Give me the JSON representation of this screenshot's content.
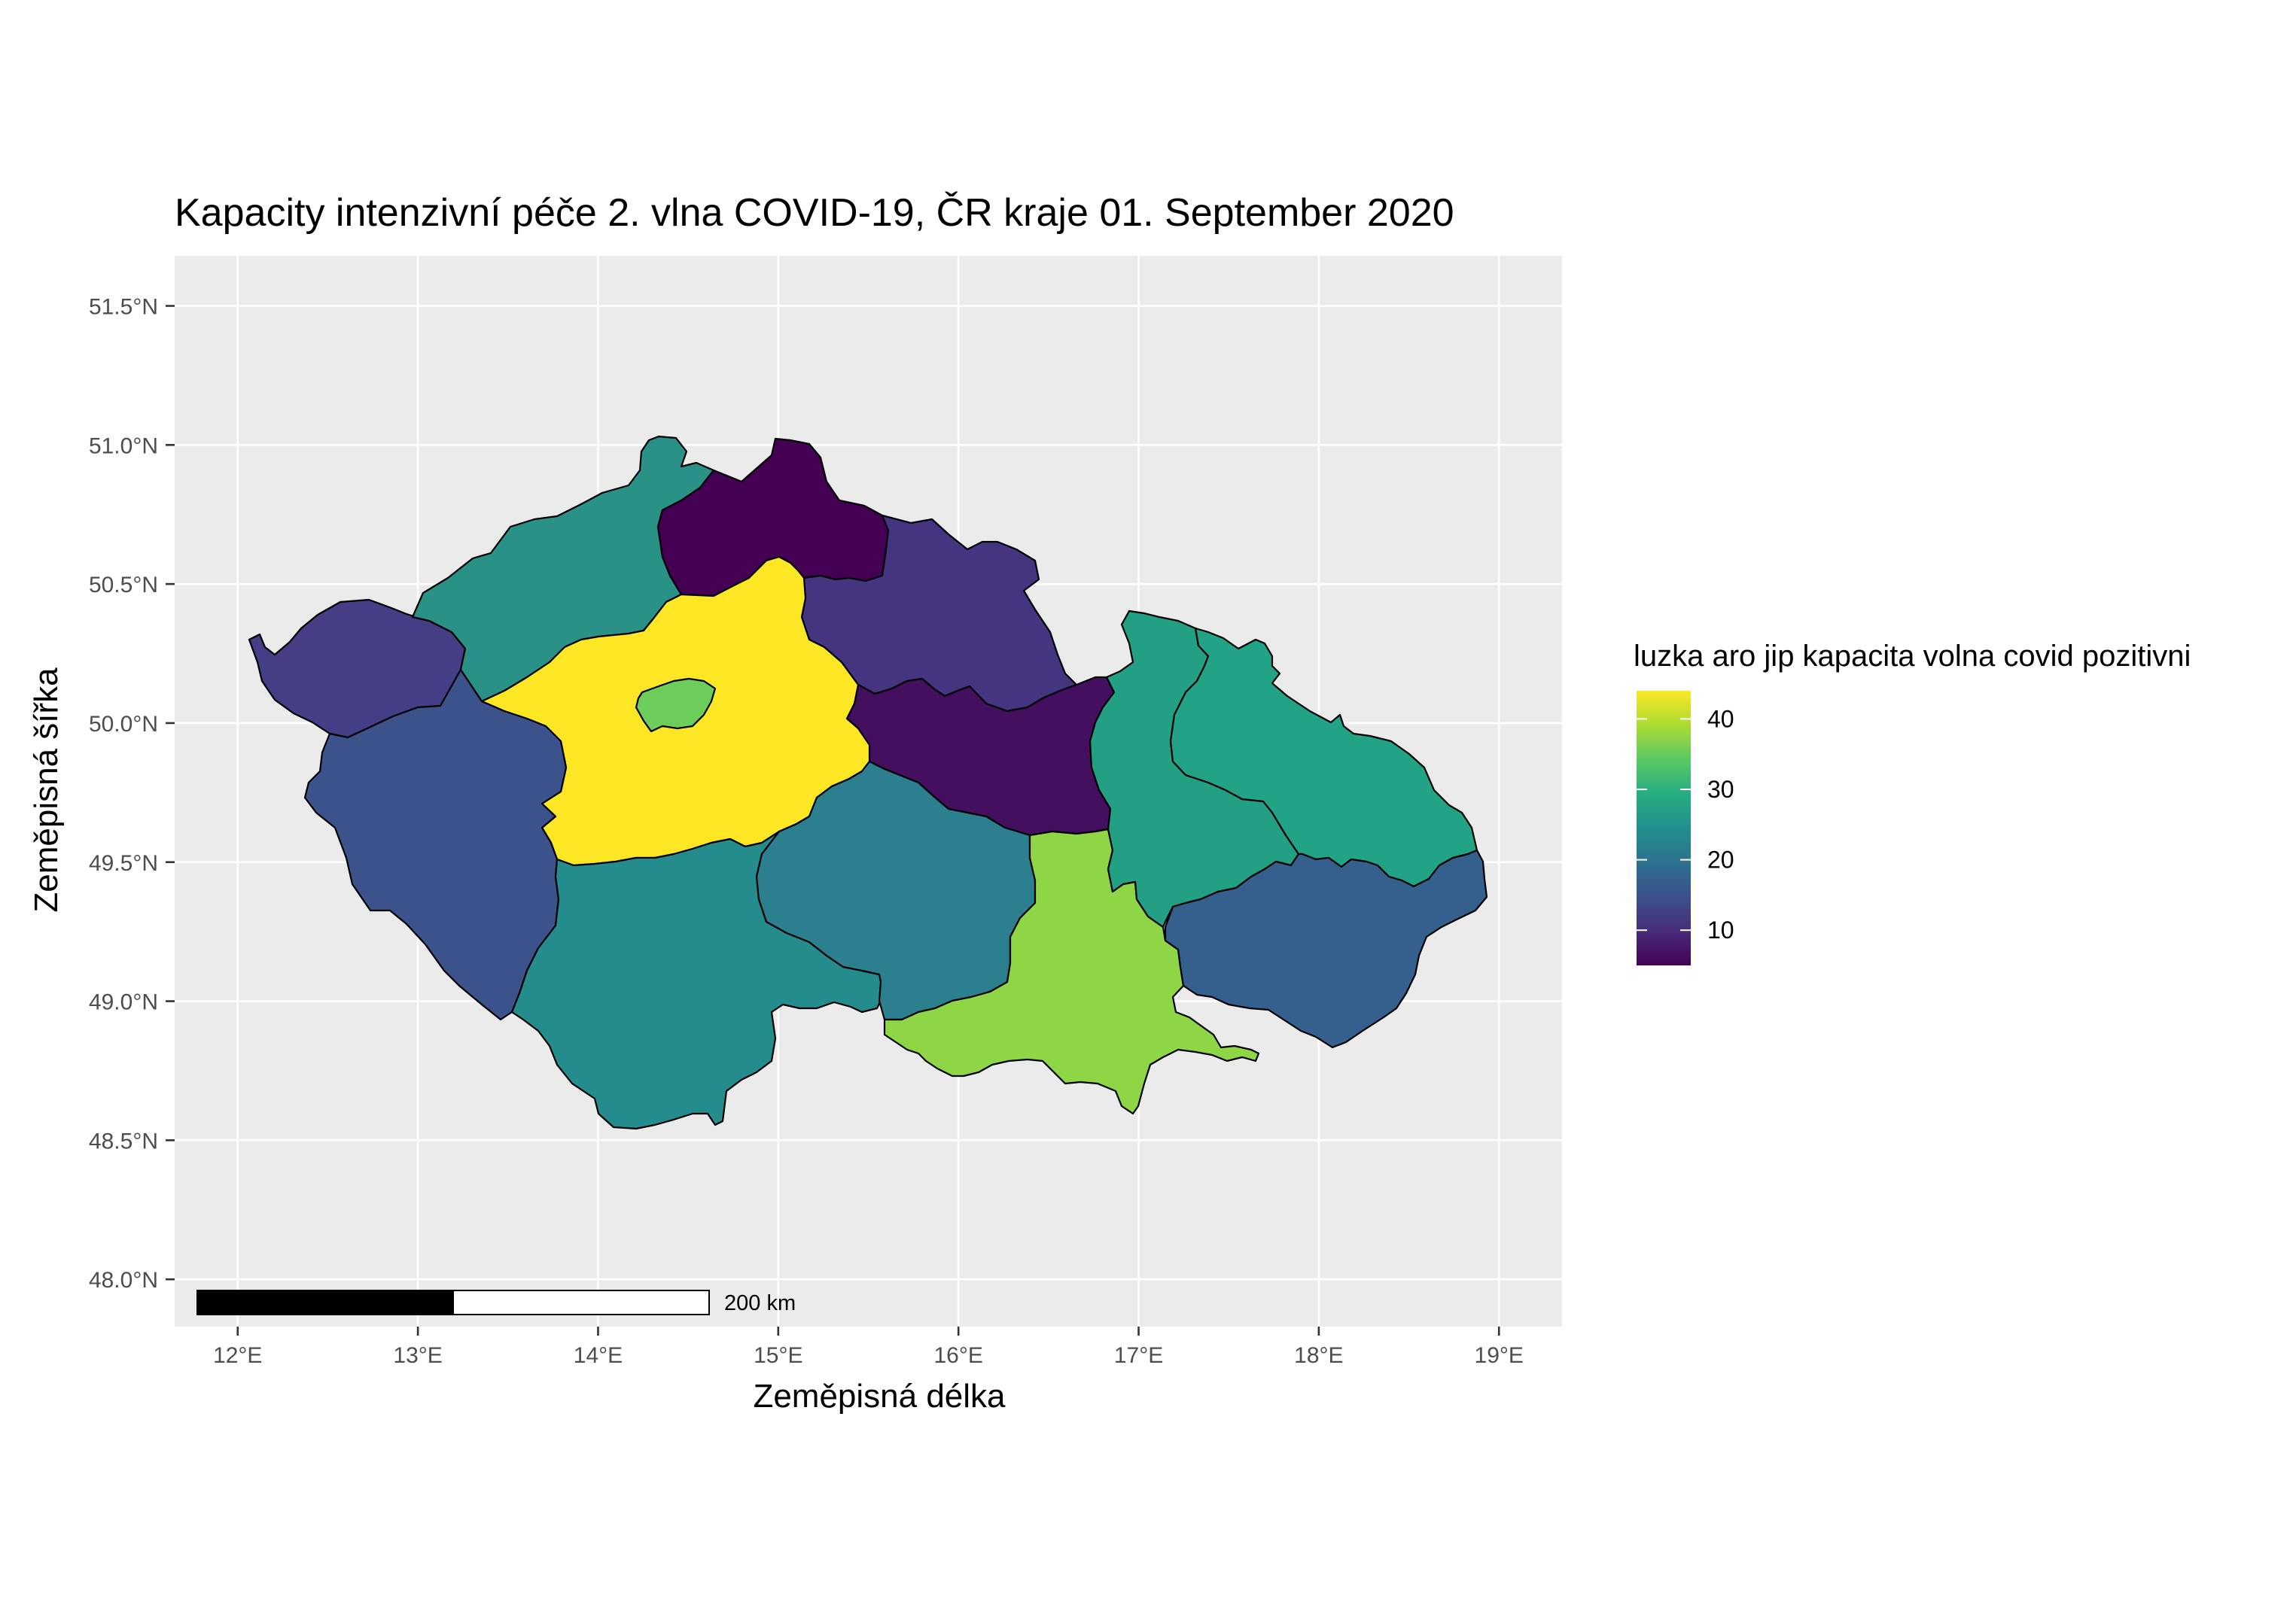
{
  "title": "Kapacity intenzivní péče 2. vlna COVID-19, ČR kraje 01. September 2020",
  "x_axis": {
    "label": "Zeměpisná délka",
    "ticks": [
      {
        "value": 12,
        "label": "12°E"
      },
      {
        "value": 13,
        "label": "13°E"
      },
      {
        "value": 14,
        "label": "14°E"
      },
      {
        "value": 15,
        "label": "15°E"
      },
      {
        "value": 16,
        "label": "16°E"
      },
      {
        "value": 17,
        "label": "17°E"
      },
      {
        "value": 18,
        "label": "18°E"
      },
      {
        "value": 19,
        "label": "19°E"
      }
    ],
    "range": [
      11.65,
      19.35
    ]
  },
  "y_axis": {
    "label": "Zeměpisná šířka",
    "ticks": [
      {
        "value": 48.0,
        "label": "48.0°N"
      },
      {
        "value": 48.5,
        "label": "48.5°N"
      },
      {
        "value": 49.0,
        "label": "49.0°N"
      },
      {
        "value": 49.5,
        "label": "49.5°N"
      },
      {
        "value": 50.0,
        "label": "50.0°N"
      },
      {
        "value": 50.5,
        "label": "50.5°N"
      },
      {
        "value": 51.0,
        "label": "51.0°N"
      },
      {
        "value": 51.5,
        "label": "51.5°N"
      }
    ],
    "range": [
      47.83,
      51.68
    ]
  },
  "legend": {
    "title": "luzka aro jip kapacita volna covid pozitivni",
    "ticks": [
      {
        "value": 10,
        "label": "10"
      },
      {
        "value": 20,
        "label": "20"
      },
      {
        "value": 30,
        "label": "30"
      },
      {
        "value": 40,
        "label": "40"
      }
    ],
    "min": 5,
    "max": 44,
    "colormap": "viridis"
  },
  "scale_bar": {
    "label": "200 km"
  },
  "colors": {
    "panel_background": "#ebebeb",
    "gridline": "#ffffff",
    "region_border": "#000000"
  },
  "regions": [
    {
      "id": "karlovarsky",
      "value": 12,
      "color": "#433e85"
    },
    {
      "id": "ustecky",
      "value": 24,
      "color": "#2a9187"
    },
    {
      "id": "liberecky",
      "value": 5,
      "color": "#440154"
    },
    {
      "id": "kralovehradecky",
      "value": 10,
      "color": "#453581"
    },
    {
      "id": "pardubicky",
      "value": 6,
      "color": "#440f5f"
    },
    {
      "id": "stredocesky",
      "value": 44,
      "color": "#fde725"
    },
    {
      "id": "praha",
      "value": 35,
      "color": "#6ccd5a"
    },
    {
      "id": "plzensky",
      "value": 15,
      "color": "#3c528b"
    },
    {
      "id": "jihocesky",
      "value": 23,
      "color": "#248c8c"
    },
    {
      "id": "vysocina",
      "value": 21,
      "color": "#2c7f8e"
    },
    {
      "id": "jihomoravsky",
      "value": 38,
      "color": "#8ed645"
    },
    {
      "id": "olomoucky",
      "value": 26,
      "color": "#23a084"
    },
    {
      "id": "moravskoslezsky",
      "value": 27,
      "color": "#22a385"
    },
    {
      "id": "zlinsky",
      "value": 16,
      "color": "#355f8d"
    }
  ]
}
